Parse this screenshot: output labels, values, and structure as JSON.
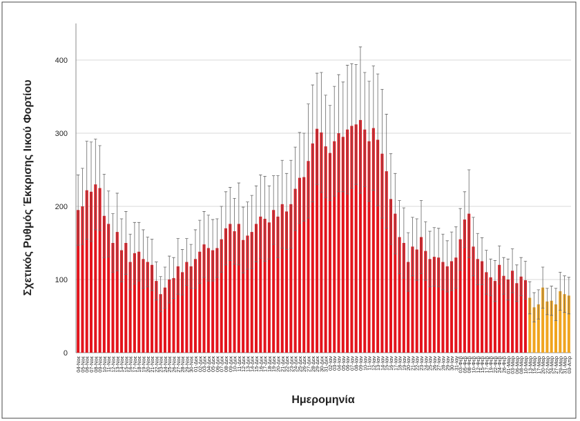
{
  "chart_data": {
    "type": "bar",
    "ylabel": "Σχετικός Ρυθμός Έκκρισης Ιικού Φορτίου",
    "xlabel": "Ημερομηνία",
    "categories": [
      "04-Νοε",
      "05-Νοε",
      "06-Νοε",
      "07-Νοε",
      "08-Νοε",
      "09-Νοε",
      "10-Νοε",
      "11-Νοε",
      "12-Νοε",
      "13-Νοε",
      "14-Νοε",
      "15-Νοε",
      "16-Νοε",
      "17-Νοε",
      "18-Νοε",
      "19-Νοε",
      "20-Νοε",
      "21-Νοε",
      "22-Νοε",
      "23-Νοε",
      "24-Νοε",
      "25-Νοε",
      "26-Νοε",
      "27-Νοε",
      "28-Νοε",
      "29-Νοε",
      "30-Νοε",
      "01-Δεκ",
      "02-Δεκ",
      "03-Δεκ",
      "04-Δεκ",
      "05-Δεκ",
      "06-Δεκ",
      "07-Δεκ",
      "08-Δεκ",
      "09-Δεκ",
      "10-Δεκ",
      "11-Δεκ",
      "12-Δεκ",
      "13-Δεκ",
      "14-Δεκ",
      "15-Δεκ",
      "16-Δεκ",
      "17-Δεκ",
      "18-Δεκ",
      "19-Δεκ",
      "20-Δεκ",
      "21-Δεκ",
      "22-Δεκ",
      "23-Δεκ",
      "24-Δεκ",
      "25-Δεκ",
      "26-Δεκ",
      "27-Δεκ",
      "28-Δεκ",
      "29-Δεκ",
      "30-Δεκ",
      "31-Δεκ",
      "02-Ιαν",
      "03-Ιαν",
      "04-Ιαν",
      "05-Ιαν",
      "06-Ιαν",
      "07-Ιαν",
      "08-Ιαν",
      "09-Ιαν",
      "10-Ιαν",
      "11-Ιαν",
      "12-Ιαν",
      "13-Ιαν",
      "14-Ιαν",
      "15-Ιαν",
      "16-Ιαν",
      "17-Ιαν",
      "18-Ιαν",
      "19-Ιαν",
      "20-Ιαν",
      "21-Ιαν",
      "22-Ιαν",
      "23-Ιαν",
      "24-Ιαν",
      "25-Ιαν",
      "26-Ιαν",
      "27-Ιαν",
      "28-Ιαν",
      "29-Ιαν",
      "30-Ιαν",
      "31-Ιαν",
      "03-Φεβ",
      "05-Φεβ",
      "08-Φεβ",
      "10-Φεβ",
      "12-Φεβ",
      "15-Φεβ",
      "17-Φεβ",
      "19-Φεβ",
      "22-Φεβ",
      "24-Φεβ",
      "26-Φεβ",
      "01-Μαρ",
      "03-Μαρ",
      "06-Μαρ",
      "08-Μαρ",
      "10-Μαρ",
      "13-Μαρ",
      "15-Μαρ",
      "17-Μαρ",
      "20-Μαρ",
      "22-Μαρ",
      "24-Μαρ",
      "27-Μαρ",
      "29-Μαρ",
      "31-Μαρ",
      "03-Απρ"
    ],
    "series": [
      {
        "color": "#e3141c",
        "values": [
          195,
          200,
          222,
          220,
          230,
          225,
          187,
          176,
          150,
          165,
          140,
          150,
          124,
          136,
          138,
          128,
          124,
          120,
          98,
          80,
          89,
          100,
          102,
          118,
          110,
          124,
          118,
          128,
          138,
          148,
          143,
          140,
          143,
          155,
          170,
          176,
          166,
          176,
          154,
          160,
          165,
          176,
          186,
          183,
          178,
          195,
          186,
          203,
          193,
          203,
          224,
          239,
          240,
          262,
          286,
          306,
          301,
          282,
          273,
          289,
          300,
          295,
          305,
          310,
          312,
          318,
          305,
          289,
          307,
          291,
          272,
          248,
          210,
          190,
          158,
          150,
          124,
          145,
          141,
          158,
          139,
          128,
          131,
          130,
          124,
          118,
          125,
          130,
          155,
          182,
          190,
          145,
          128,
          125,
          110,
          103,
          98,
          120,
          105,
          100,
          112,
          95,
          104,
          99,
          null,
          null,
          null,
          null,
          null,
          null,
          null,
          null,
          null,
          null
        ],
        "errors": [
          48,
          52,
          67,
          68,
          62,
          58,
          57,
          45,
          40,
          53,
          43,
          43,
          38,
          42,
          40,
          40,
          34,
          35,
          26,
          24,
          28,
          32,
          28,
          38,
          31,
          32,
          30,
          40,
          43,
          45,
          45,
          42,
          40,
          45,
          50,
          50,
          45,
          56,
          45,
          46,
          50,
          52,
          57,
          58,
          50,
          47,
          56,
          60,
          52,
          60,
          57,
          62,
          60,
          78,
          80,
          76,
          82,
          70,
          65,
          75,
          80,
          75,
          88,
          85,
          82,
          100,
          78,
          82,
          85,
          90,
          88,
          78,
          62,
          55,
          50,
          48,
          40,
          40,
          42,
          50,
          40,
          38,
          40,
          40,
          38,
          35,
          40,
          42,
          42,
          38,
          60,
          40,
          35,
          32,
          30,
          25,
          28,
          26,
          25,
          28,
          30,
          25,
          26,
          26,
          null,
          null,
          null,
          null,
          null,
          null,
          null,
          null,
          null,
          null
        ]
      },
      {
        "color": "#f0a41e",
        "values": [
          null,
          null,
          null,
          null,
          null,
          null,
          null,
          null,
          null,
          null,
          null,
          null,
          null,
          null,
          null,
          null,
          null,
          null,
          null,
          null,
          null,
          null,
          null,
          null,
          null,
          null,
          null,
          null,
          null,
          null,
          null,
          null,
          null,
          null,
          null,
          null,
          null,
          null,
          null,
          null,
          null,
          null,
          null,
          null,
          null,
          null,
          null,
          null,
          null,
          null,
          null,
          null,
          null,
          null,
          null,
          null,
          null,
          null,
          null,
          null,
          null,
          null,
          null,
          null,
          null,
          null,
          null,
          null,
          null,
          null,
          null,
          null,
          null,
          null,
          null,
          null,
          null,
          null,
          null,
          null,
          null,
          null,
          null,
          null,
          null,
          null,
          null,
          null,
          null,
          null,
          null,
          null,
          null,
          null,
          null,
          null,
          null,
          null,
          null,
          null,
          null,
          null,
          null,
          null,
          75,
          62,
          66,
          89,
          70,
          71,
          66,
          84,
          80,
          78
        ],
        "errors": [
          null,
          null,
          null,
          null,
          null,
          null,
          null,
          null,
          null,
          null,
          null,
          null,
          null,
          null,
          null,
          null,
          null,
          null,
          null,
          null,
          null,
          null,
          null,
          null,
          null,
          null,
          null,
          null,
          null,
          null,
          null,
          null,
          null,
          null,
          null,
          null,
          null,
          null,
          null,
          null,
          null,
          null,
          null,
          null,
          null,
          null,
          null,
          null,
          null,
          null,
          null,
          null,
          null,
          null,
          null,
          null,
          null,
          null,
          null,
          null,
          null,
          null,
          null,
          null,
          null,
          null,
          null,
          null,
          null,
          null,
          null,
          null,
          null,
          null,
          null,
          null,
          null,
          null,
          null,
          null,
          null,
          null,
          null,
          null,
          null,
          null,
          null,
          null,
          null,
          null,
          null,
          null,
          null,
          null,
          null,
          null,
          null,
          null,
          null,
          null,
          null,
          null,
          null,
          null,
          22,
          20,
          20,
          28,
          18,
          20,
          22,
          26,
          25,
          25
        ]
      }
    ],
    "ylim": [
      0,
      450
    ],
    "yticks": [
      0,
      100,
      200,
      300,
      400
    ],
    "grid": true
  }
}
